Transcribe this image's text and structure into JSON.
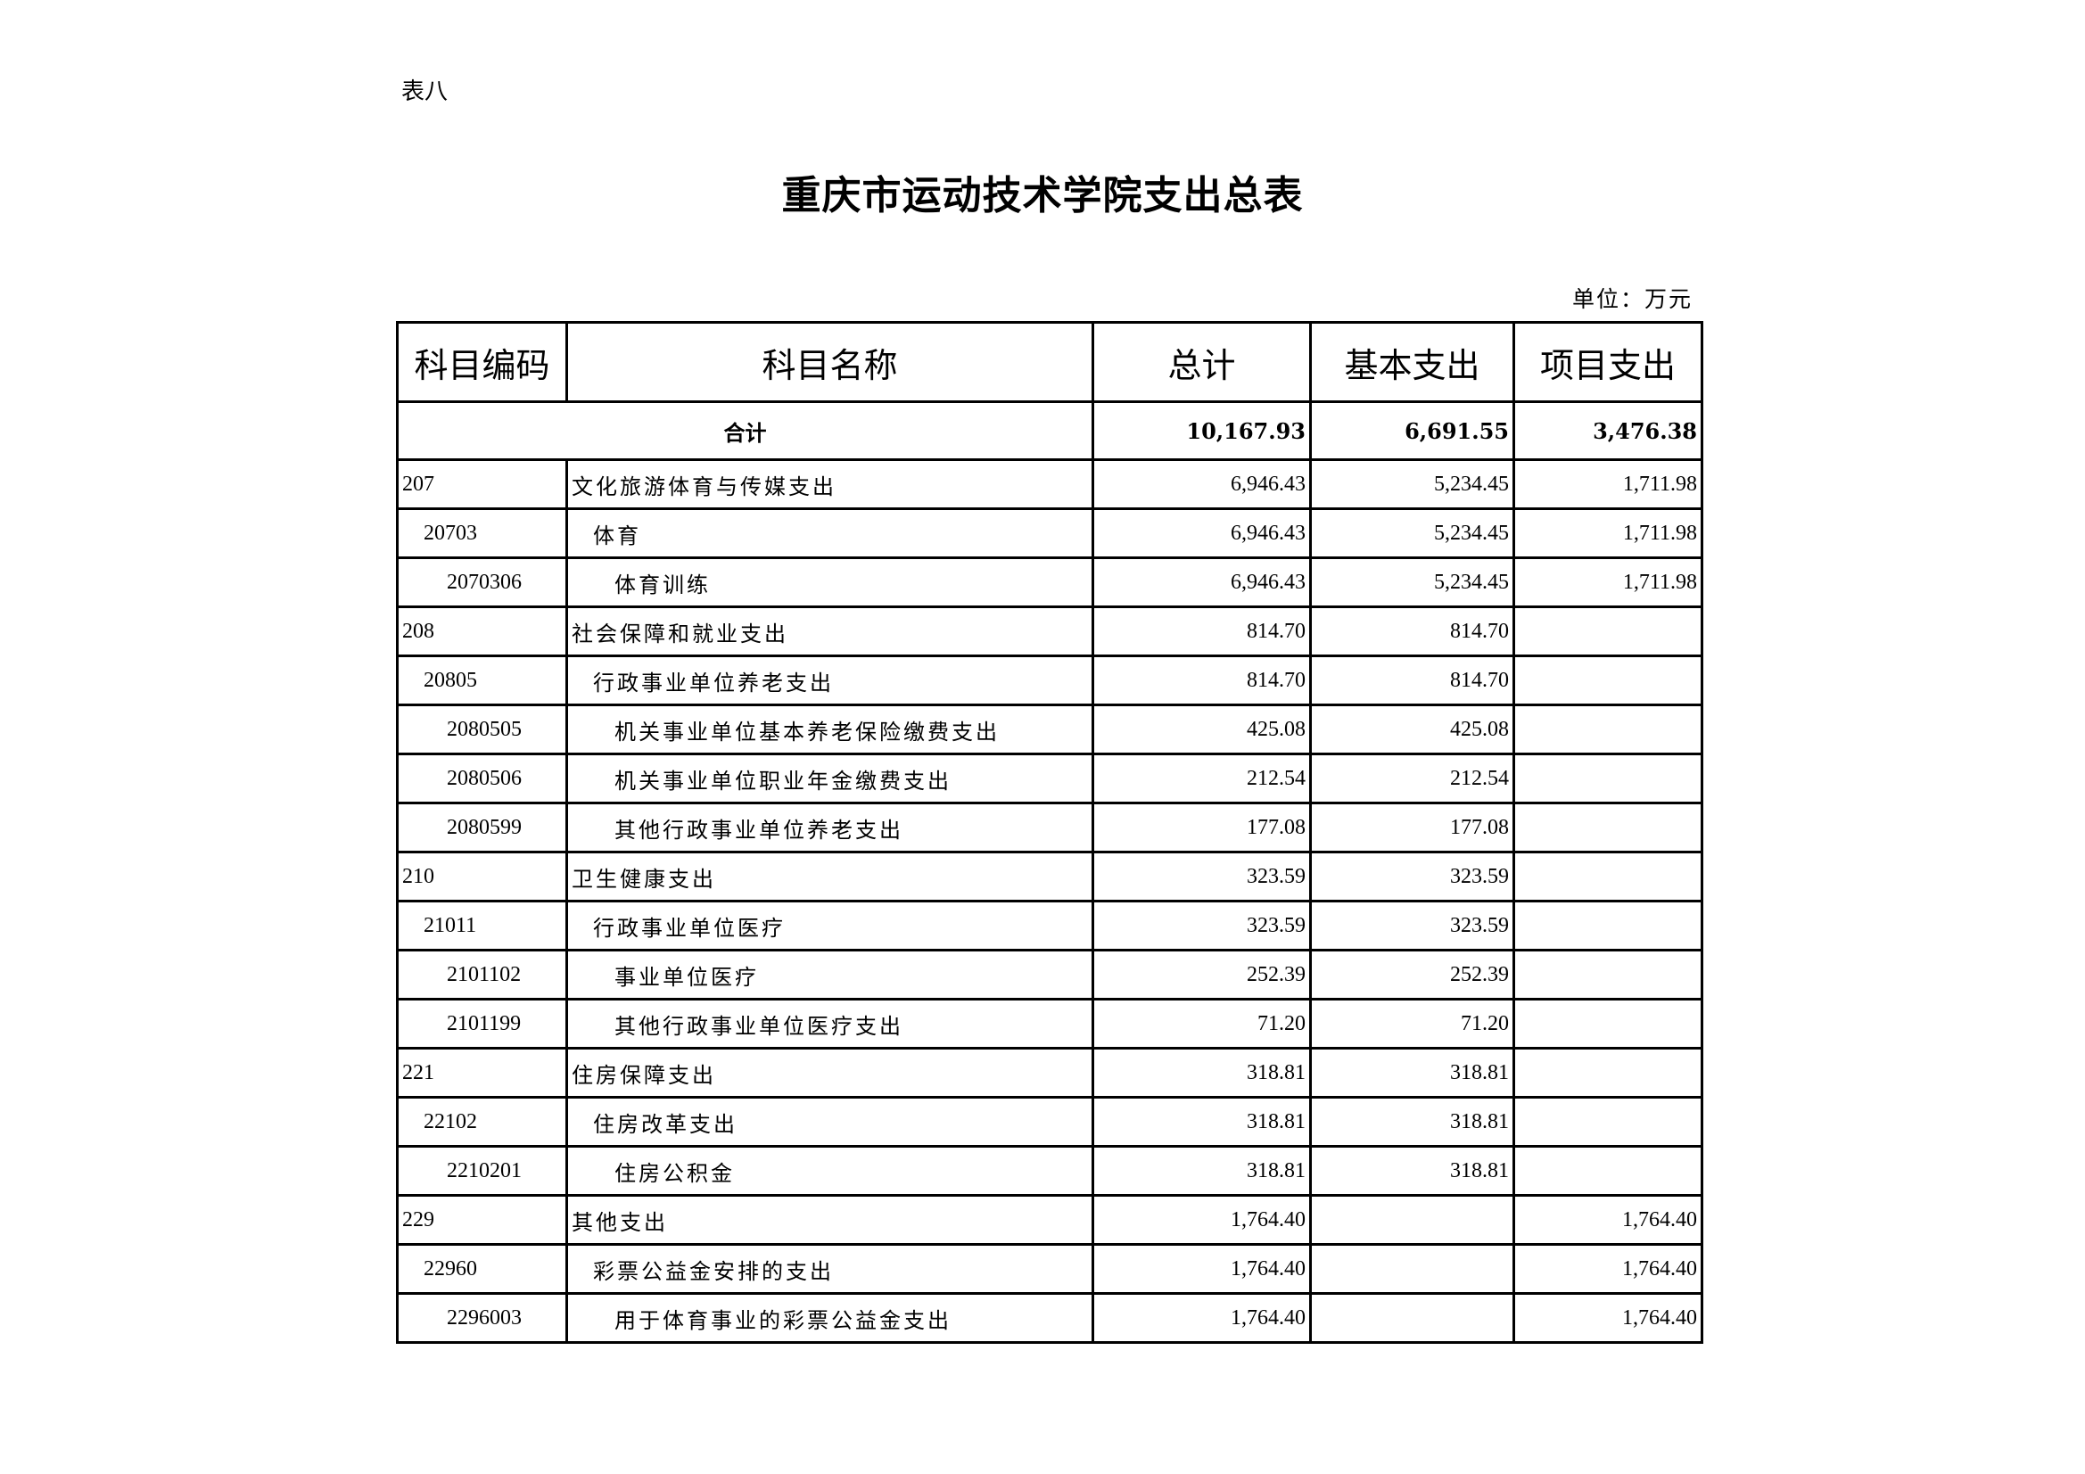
{
  "table_label": "表八",
  "title": "重庆市运动技术学院支出总表",
  "unit": "单位：万元",
  "headers": [
    "科目编码",
    "科目名称",
    "总计",
    "基本支出",
    "项目支出"
  ],
  "total_row": {
    "label": "合计",
    "total": "10,167.93",
    "basic": "6,691.55",
    "project": "3,476.38"
  },
  "rows": [
    {
      "level": 1,
      "code": "207",
      "name": "文化旅游体育与传媒支出",
      "total": "6,946.43",
      "basic": "5,234.45",
      "project": "1,711.98"
    },
    {
      "level": 2,
      "code": "20703",
      "name": "体育",
      "total": "6,946.43",
      "basic": "5,234.45",
      "project": "1,711.98"
    },
    {
      "level": 3,
      "code": "2070306",
      "name": "体育训练",
      "total": "6,946.43",
      "basic": "5,234.45",
      "project": "1,711.98"
    },
    {
      "level": 1,
      "code": "208",
      "name": "社会保障和就业支出",
      "total": "814.70",
      "basic": "814.70",
      "project": ""
    },
    {
      "level": 2,
      "code": "20805",
      "name": "行政事业单位养老支出",
      "total": "814.70",
      "basic": "814.70",
      "project": ""
    },
    {
      "level": 3,
      "code": "2080505",
      "name": "机关事业单位基本养老保险缴费支出",
      "total": "425.08",
      "basic": "425.08",
      "project": ""
    },
    {
      "level": 3,
      "code": "2080506",
      "name": "机关事业单位职业年金缴费支出",
      "total": "212.54",
      "basic": "212.54",
      "project": ""
    },
    {
      "level": 3,
      "code": "2080599",
      "name": "其他行政事业单位养老支出",
      "total": "177.08",
      "basic": "177.08",
      "project": ""
    },
    {
      "level": 1,
      "code": "210",
      "name": "卫生健康支出",
      "total": "323.59",
      "basic": "323.59",
      "project": ""
    },
    {
      "level": 2,
      "code": "21011",
      "name": "行政事业单位医疗",
      "total": "323.59",
      "basic": "323.59",
      "project": ""
    },
    {
      "level": 3,
      "code": "2101102",
      "name": "事业单位医疗",
      "total": "252.39",
      "basic": "252.39",
      "project": ""
    },
    {
      "level": 3,
      "code": "2101199",
      "name": "其他行政事业单位医疗支出",
      "total": "71.20",
      "basic": "71.20",
      "project": ""
    },
    {
      "level": 1,
      "code": "221",
      "name": "住房保障支出",
      "total": "318.81",
      "basic": "318.81",
      "project": ""
    },
    {
      "level": 2,
      "code": "22102",
      "name": "住房改革支出",
      "total": "318.81",
      "basic": "318.81",
      "project": ""
    },
    {
      "level": 3,
      "code": "2210201",
      "name": "住房公积金",
      "total": "318.81",
      "basic": "318.81",
      "project": ""
    },
    {
      "level": 1,
      "code": "229",
      "name": "其他支出",
      "total": "1,764.40",
      "basic": "",
      "project": "1,764.40"
    },
    {
      "level": 2,
      "code": "22960",
      "name": "彩票公益金安排的支出",
      "total": "1,764.40",
      "basic": "",
      "project": "1,764.40"
    },
    {
      "level": 3,
      "code": "2296003",
      "name": "用于体育事业的彩票公益金支出",
      "total": "1,764.40",
      "basic": "",
      "project": "1,764.40"
    }
  ]
}
